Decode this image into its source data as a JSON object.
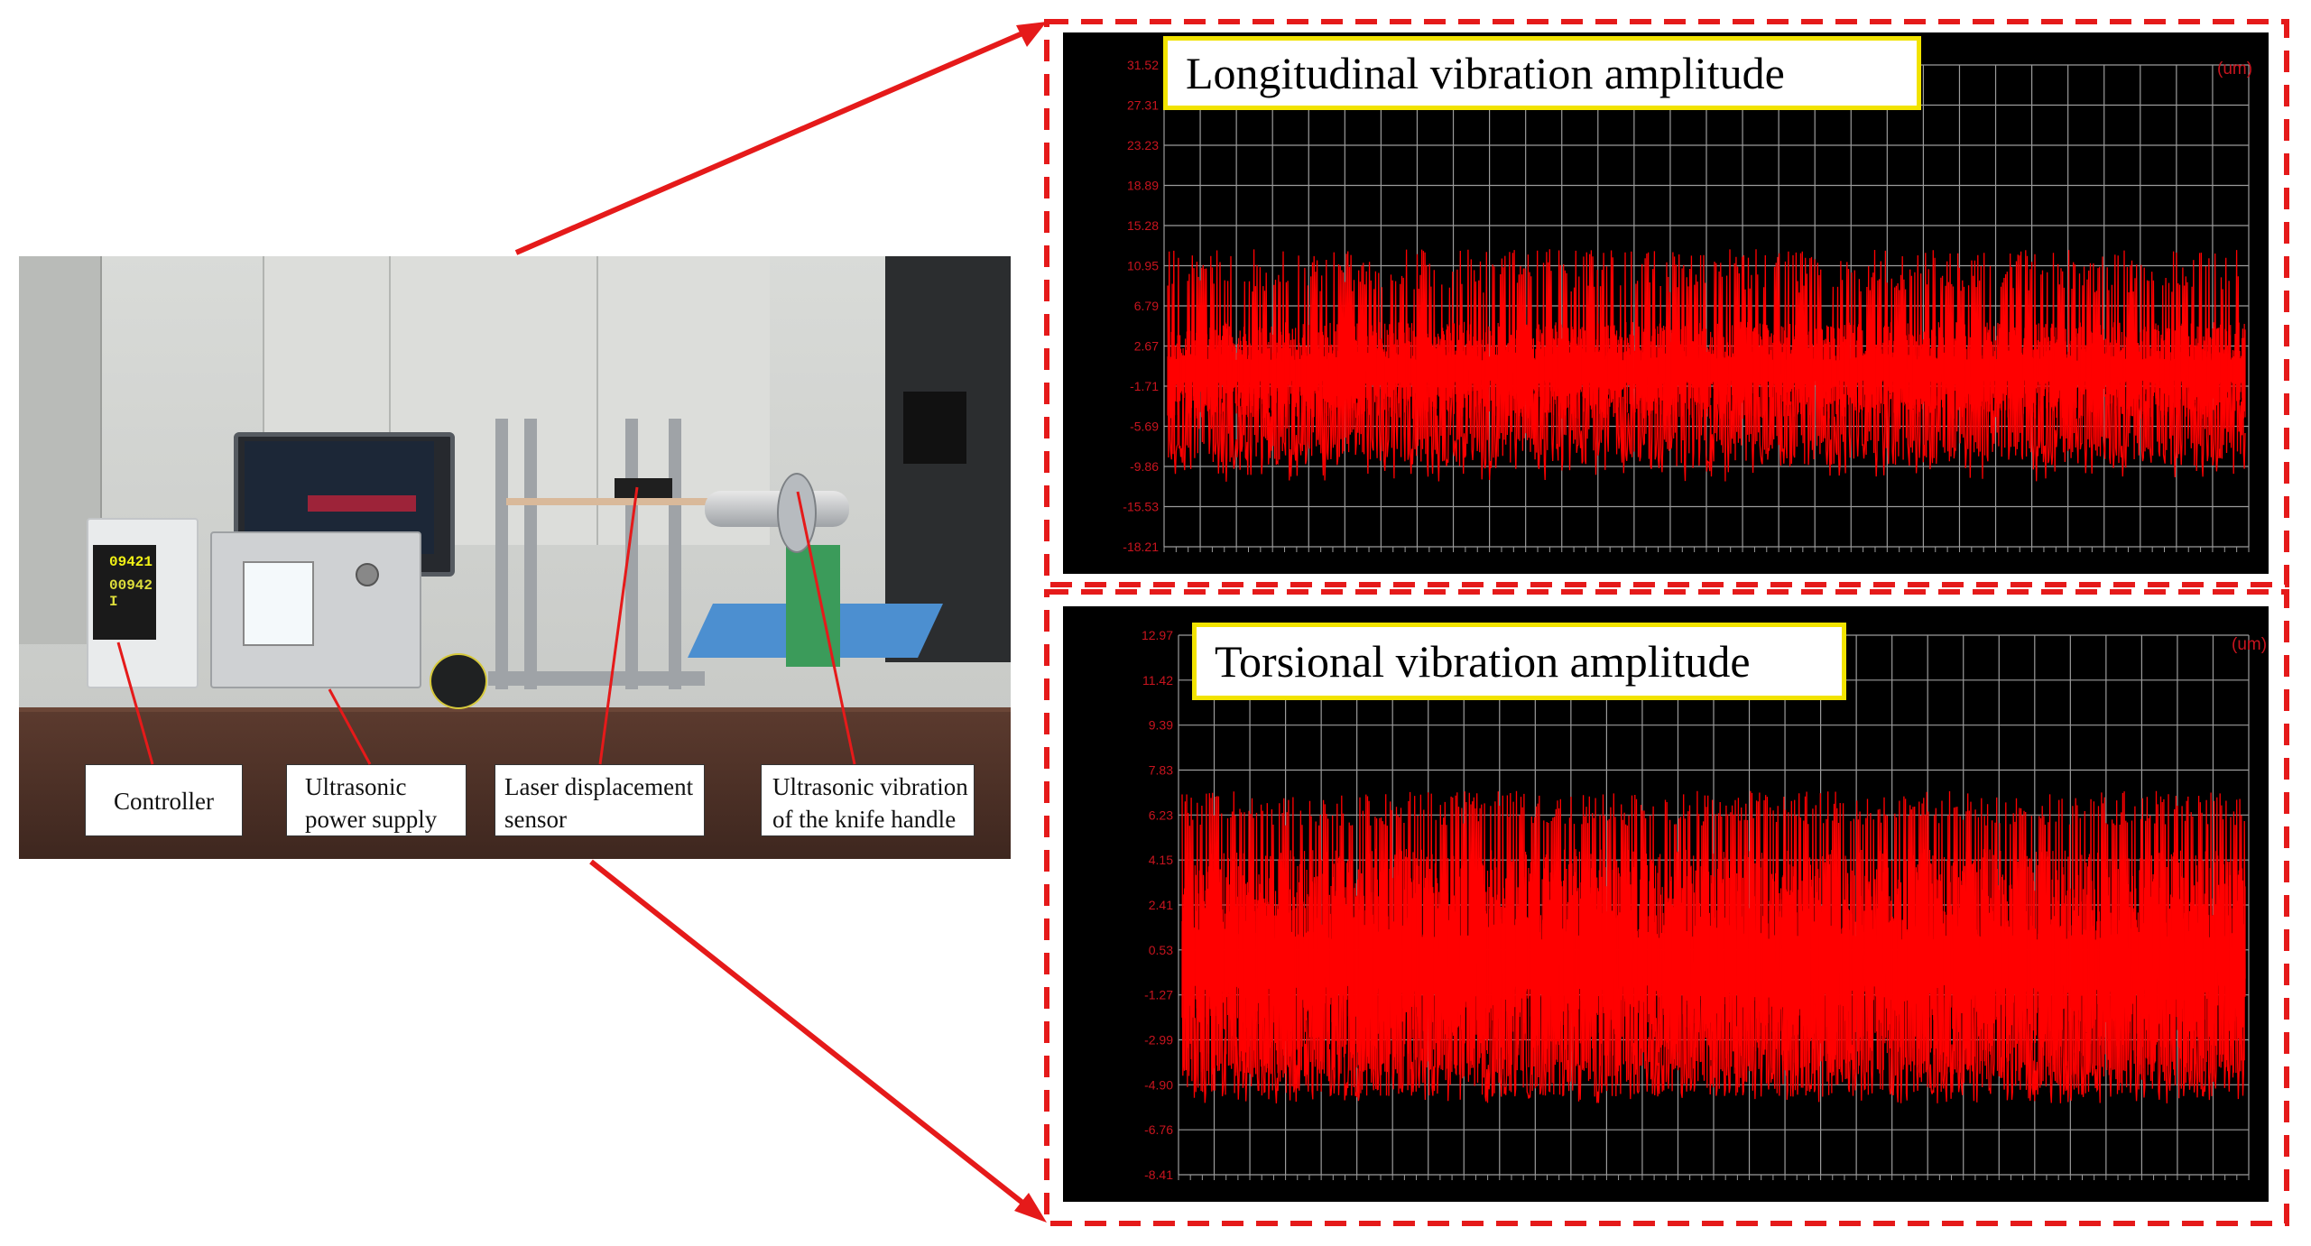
{
  "photo": {
    "display_top": "09421",
    "display_bottom": "00942 I",
    "labels": {
      "controller": "Controller",
      "ultrasonic_power_supply": [
        "Ultrasonic",
        "power supply"
      ],
      "laser_displacement_sensor": [
        "Laser displacement",
        "sensor"
      ],
      "knife_handle": [
        "Ultrasonic vibration",
        "of the knife handle"
      ]
    }
  },
  "colors": {
    "arrow": "#e51a1a",
    "dashed_box": "#e51a1a",
    "chart_background": "#000000",
    "grid": "#9b9b9b",
    "signal": "#ff0000",
    "title_border": "#f2e300"
  },
  "chart_data": [
    {
      "type": "line",
      "title": "Longitudinal vibration amplitude",
      "unit": "(um)",
      "yticks": [
        "31.52",
        "27.31",
        "23.23",
        "18.89",
        "15.28",
        "10.95",
        "6.79",
        "2.67",
        "-1.71",
        "-5.69",
        "-9.86",
        "-15.53",
        "-18.21"
      ],
      "ylim": [
        -18.21,
        31.52
      ],
      "series": [
        {
          "values_envelope": {
            "upper": 12.5,
            "lower": -11.5,
            "dense_core": [
              -5,
              5
            ]
          }
        }
      ],
      "grid": true
    },
    {
      "type": "line",
      "title": "Torsional vibration amplitude",
      "unit": "(um)",
      "yticks": [
        "12.97",
        "11.42",
        "9.39",
        "7.83",
        "6.23",
        "4.15",
        "2.41",
        "0.53",
        "-1.27",
        "-2.99",
        "-4.90",
        "-6.76",
        "-8.41"
      ],
      "ylim": [
        -8.41,
        12.97
      ],
      "series": [
        {
          "values_envelope": {
            "upper": 6.8,
            "lower": -5.6,
            "dense_core": [
              -4.5,
              4.5
            ]
          }
        }
      ],
      "grid": true
    }
  ]
}
